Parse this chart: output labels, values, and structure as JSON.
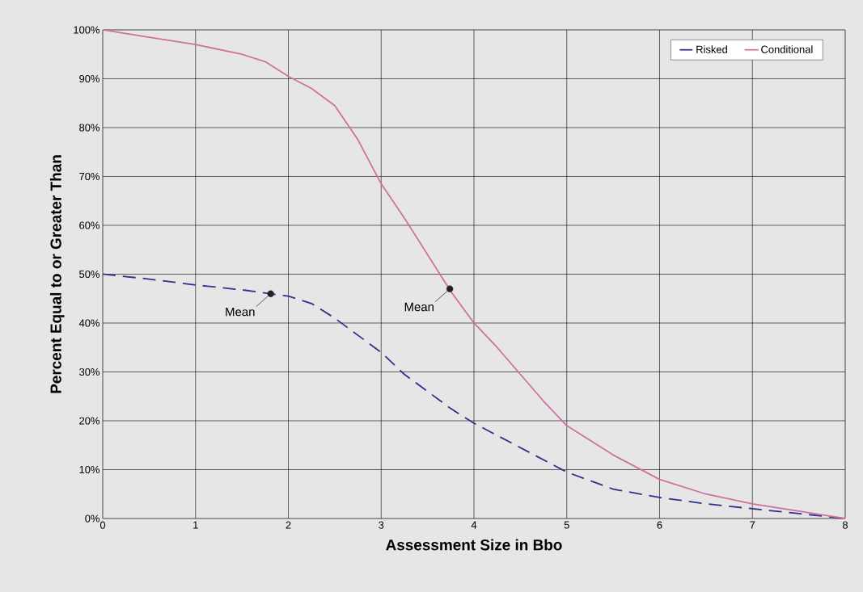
{
  "chart_data": {
    "type": "line",
    "xlabel": "Assessment Size in Bbo",
    "ylabel": "Percent Equal to or Greater Than",
    "xlim": [
      0,
      8
    ],
    "xticks": [
      0,
      1,
      2,
      3,
      4,
      5,
      6,
      7,
      8
    ],
    "ylim": [
      0,
      100
    ],
    "yticks": [
      {
        "value": 0,
        "label": "0%"
      },
      {
        "value": 10,
        "label": "10%"
      },
      {
        "value": 20,
        "label": "20%"
      },
      {
        "value": 30,
        "label": "30%"
      },
      {
        "value": 40,
        "label": "40%"
      },
      {
        "value": 50,
        "label": "50%"
      },
      {
        "value": 60,
        "label": "60%"
      },
      {
        "value": 70,
        "label": "70%"
      },
      {
        "value": 80,
        "label": "80%"
      },
      {
        "value": 90,
        "label": "90%"
      },
      {
        "value": 100,
        "label": "100%"
      }
    ],
    "grid": true,
    "legend": "top right",
    "series": [
      {
        "name": "Risked",
        "color": "#3a2a8a",
        "line_style": "dashed",
        "x": [
          0,
          0.5,
          1,
          1.5,
          1.8,
          2,
          2.25,
          2.5,
          2.75,
          3,
          3.25,
          3.5,
          3.75,
          4,
          4.5,
          5,
          5.5,
          6,
          6.5,
          7,
          7.5,
          8
        ],
        "values": [
          50,
          49,
          47.8,
          46.8,
          46,
          45.5,
          44,
          41,
          37.5,
          34,
          29.5,
          26,
          22.5,
          19.5,
          14.5,
          9.5,
          6,
          4.3,
          3,
          2,
          1,
          0
        ]
      },
      {
        "name": "Conditional",
        "color": "#d070a0",
        "line_style": "solid",
        "x": [
          0,
          0.5,
          1,
          1.5,
          1.75,
          2,
          2.25,
          2.5,
          2.75,
          3,
          3.25,
          3.5,
          3.75,
          4,
          4.25,
          4.5,
          4.75,
          5,
          5.5,
          6,
          6.5,
          7,
          7.5,
          8
        ],
        "values": [
          100,
          98.5,
          97,
          95,
          93.5,
          90.5,
          88,
          84.5,
          77.5,
          68.5,
          61.5,
          54,
          46.5,
          40,
          35,
          29.5,
          24,
          19,
          13,
          8,
          5,
          3,
          1.5,
          0
        ]
      },
      {
        "type": "scatter",
        "marker": "circle",
        "color": "#222222",
        "x": [
          1.81,
          3.74
        ],
        "values": [
          46,
          47
        ]
      }
    ],
    "annotations": [
      {
        "text": "Mean",
        "x": 1.81,
        "y": 46
      },
      {
        "text": "Mean",
        "x": 3.74,
        "y": 47
      }
    ]
  }
}
